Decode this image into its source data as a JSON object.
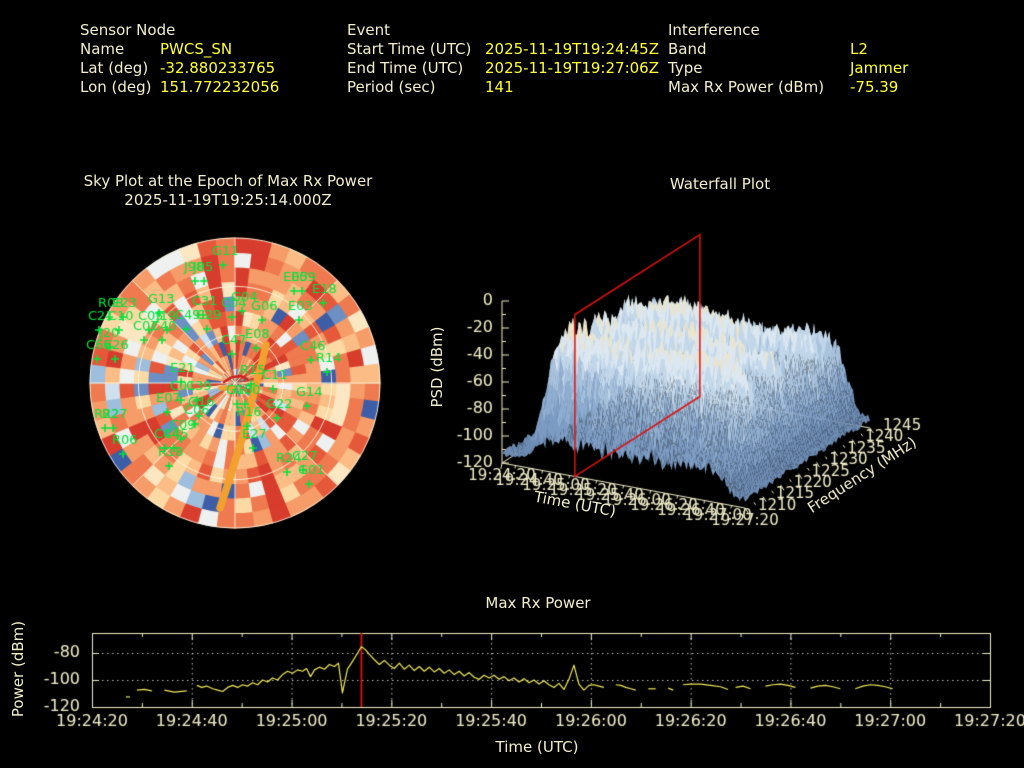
{
  "header": {
    "sensor": {
      "title": "Sensor Node",
      "rows": [
        {
          "label": "Name",
          "value": "PWCS_SN"
        },
        {
          "label": "Lat (deg)",
          "value": "-32.880233765"
        },
        {
          "label": "Lon (deg)",
          "value": "151.772232056"
        }
      ]
    },
    "event": {
      "title": "Event",
      "rows": [
        {
          "label": "Start Time (UTC)",
          "value": "2025-11-19T19:24:45Z"
        },
        {
          "label": "End Time (UTC)",
          "value": "2025-11-19T19:27:06Z"
        },
        {
          "label": "Period (sec)",
          "value": "141"
        }
      ]
    },
    "interference": {
      "title": "Interference",
      "rows": [
        {
          "label": "Band",
          "value": "L2"
        },
        {
          "label": "Type",
          "value": "Jammer"
        },
        {
          "label": "Max Rx Power (dBm)",
          "value": "-75.39"
        }
      ]
    }
  },
  "colors": {
    "background": "#000000",
    "text": "#f2eecb",
    "value_text": "#ffff33",
    "sat_green": "#00e43c",
    "track_orange": "#f2a12e",
    "marker_red": "#dd1111",
    "series_yellow": "#f0ea5e",
    "grid_white": "rgba(255,252,230,0.85)",
    "heat_palette": [
      "#3d5ea6",
      "#6d8fc3",
      "#9ebede",
      "#cfe0ee",
      "#eef1ef",
      "#fbe7c2",
      "#fdd9a4",
      "#fbbd85",
      "#f69c68",
      "#ef7a4f",
      "#e5593a",
      "#d73c2c"
    ],
    "surface_palette": [
      "#6f8db4",
      "#7e9dc4",
      "#91afd2",
      "#a9c3de",
      "#c2d7ea",
      "#dce8f2",
      "#e8e4d0",
      "#f2e6c4"
    ]
  },
  "chart_data": [
    {
      "id": "sky_plot",
      "type": "heatmap",
      "projection": "polar",
      "title": "Sky Plot at the Epoch of Max Rx Power",
      "subtitle": "2025-11-19T19:25:14.000Z",
      "grid": {
        "elevation_rings": 3,
        "azimuth_spokes": 8
      },
      "satellites": [
        {
          "id": "G11",
          "x": 212,
          "y": 245
        },
        {
          "id": "J05",
          "x": 193,
          "y": 261
        },
        {
          "id": "J98",
          "x": 184,
          "y": 261
        },
        {
          "id": "E05",
          "x": 283,
          "y": 271
        },
        {
          "id": "E09",
          "x": 291,
          "y": 271
        },
        {
          "id": "E18",
          "x": 312,
          "y": 283
        },
        {
          "id": "G04",
          "x": 231,
          "y": 291
        },
        {
          "id": "C04",
          "x": 221,
          "y": 297
        },
        {
          "id": "G06",
          "x": 251,
          "y": 300
        },
        {
          "id": "E03",
          "x": 288,
          "y": 300
        },
        {
          "id": "G13",
          "x": 148,
          "y": 293
        },
        {
          "id": "R08",
          "x": 98,
          "y": 297
        },
        {
          "id": "E23",
          "x": 112,
          "y": 297
        },
        {
          "id": "C31",
          "x": 192,
          "y": 295
        },
        {
          "id": "C21",
          "x": 88,
          "y": 310
        },
        {
          "id": "C10",
          "x": 108,
          "y": 310
        },
        {
          "id": "C05",
          "x": 138,
          "y": 310
        },
        {
          "id": "J19",
          "x": 156,
          "y": 310
        },
        {
          "id": "C49",
          "x": 175,
          "y": 309
        },
        {
          "id": "C29",
          "x": 196,
          "y": 309
        },
        {
          "id": "C07",
          "x": 133,
          "y": 320
        },
        {
          "id": "C40",
          "x": 151,
          "y": 320
        },
        {
          "id": "J20",
          "x": 99,
          "y": 327
        },
        {
          "id": "C66",
          "x": 86,
          "y": 339
        },
        {
          "id": "E26",
          "x": 104,
          "y": 339
        },
        {
          "id": "E08",
          "x": 245,
          "y": 328
        },
        {
          "id": "C47",
          "x": 221,
          "y": 334
        },
        {
          "id": "C46",
          "x": 300,
          "y": 340
        },
        {
          "id": "R14",
          "x": 316,
          "y": 352
        },
        {
          "id": "E21",
          "x": 170,
          "y": 362
        },
        {
          "id": "R15",
          "x": 240,
          "y": 364
        },
        {
          "id": "C11",
          "x": 262,
          "y": 369
        },
        {
          "id": "C01",
          "x": 170,
          "y": 380
        },
        {
          "id": "C39",
          "x": 186,
          "y": 380
        },
        {
          "id": "G10",
          "x": 226,
          "y": 384
        },
        {
          "id": "G30",
          "x": 234,
          "y": 384
        },
        {
          "id": "E07",
          "x": 156,
          "y": 392
        },
        {
          "id": "G16",
          "x": 188,
          "y": 396
        },
        {
          "id": "C06",
          "x": 184,
          "y": 404
        },
        {
          "id": "G22",
          "x": 266,
          "y": 398
        },
        {
          "id": "R16",
          "x": 236,
          "y": 406
        },
        {
          "id": "G14",
          "x": 296,
          "y": 386
        },
        {
          "id": "R27",
          "x": 102,
          "y": 408
        },
        {
          "id": "R22",
          "x": 94,
          "y": 408
        },
        {
          "id": "C09",
          "x": 170,
          "y": 419
        },
        {
          "id": "C44",
          "x": 154,
          "y": 428
        },
        {
          "id": "C45",
          "x": 163,
          "y": 428
        },
        {
          "id": "R06",
          "x": 112,
          "y": 434
        },
        {
          "id": "R18",
          "x": 158,
          "y": 446
        },
        {
          "id": "E27",
          "x": 242,
          "y": 428
        },
        {
          "id": "R24",
          "x": 276,
          "y": 452
        },
        {
          "id": "C27",
          "x": 292,
          "y": 450
        },
        {
          "id": "G01",
          "x": 298,
          "y": 464
        }
      ],
      "track": [
        [
          266,
          345
        ],
        [
          262,
          362
        ],
        [
          257,
          381
        ],
        [
          252,
          400
        ],
        [
          247,
          420
        ],
        [
          241,
          442
        ],
        [
          233,
          468
        ],
        [
          226,
          490
        ],
        [
          220,
          508
        ]
      ],
      "track_dash": [
        [
          221,
          388
        ],
        [
          233,
          388
        ]
      ],
      "epoch_marker": [
        [
          224,
          382
        ],
        [
          232,
          377
        ],
        [
          241,
          376
        ],
        [
          247,
          379
        ]
      ]
    },
    {
      "id": "waterfall",
      "type": "surface",
      "title": "Waterfall Plot",
      "zlabel": "PSD (dBm)",
      "zticks": [
        0,
        -20,
        -40,
        -60,
        -80,
        -100,
        -120
      ],
      "zlim": [
        -120,
        0
      ],
      "xlabel": "Time (UTC)",
      "xticks": [
        "19:24:20",
        "19:24:40",
        "19:25:00",
        "19:25:20",
        "19:25:40",
        "19:26:00",
        "19:26:20",
        "19:26:40",
        "19:27:00",
        "19:27:20"
      ],
      "ylabel": "Frequency (MHz)",
      "yticks": [
        1210,
        1215,
        1220,
        1225,
        1230,
        1235,
        1240,
        1245
      ],
      "ylim": [
        1210,
        1245
      ],
      "slice_marker_time": "19:25:14"
    },
    {
      "id": "max_rx_power",
      "type": "line",
      "title": "Max Rx Power",
      "xlabel": "Time (UTC)",
      "ylabel": "Power (dBm)",
      "xticks": [
        "19:24:20",
        "19:24:40",
        "19:25:00",
        "19:25:20",
        "19:25:40",
        "19:26:00",
        "19:26:20",
        "19:26:40",
        "19:27:00",
        "19:27:20"
      ],
      "yticks": [
        -80,
        -100,
        -120
      ],
      "ylim": [
        -120,
        -65.2
      ],
      "x_range_seconds": 180,
      "marker": {
        "time": "19:25:14",
        "t": 54,
        "color": "#dd1111"
      },
      "peak": {
        "t": 54,
        "value": -75.39
      },
      "segments": [
        [
          [
            6.8,
            -112.5
          ],
          [
            7.6,
            -112.5
          ]
        ],
        [
          [
            9,
            -107.5
          ],
          [
            10.5,
            -107
          ],
          [
            12,
            -108
          ]
        ],
        [
          [
            14.5,
            -107.5
          ],
          [
            16.5,
            -109
          ],
          [
            19,
            -108
          ]
        ],
        [
          [
            21,
            -104
          ],
          [
            22,
            -105.5
          ],
          [
            23,
            -104.5
          ],
          [
            24.2,
            -106.5
          ],
          [
            25.2,
            -107.5
          ],
          [
            26.2,
            -108.5
          ],
          [
            27.2,
            -105.5
          ],
          [
            28.2,
            -104
          ],
          [
            29.2,
            -105.5
          ],
          [
            30.2,
            -103.5
          ],
          [
            31.2,
            -104.5
          ],
          [
            32.2,
            -102
          ],
          [
            33.2,
            -103.5
          ],
          [
            34.2,
            -100
          ],
          [
            35.2,
            -101.5
          ],
          [
            36.2,
            -98.5
          ],
          [
            37.2,
            -100
          ],
          [
            38.2,
            -96
          ],
          [
            39.2,
            -93.5
          ],
          [
            40.2,
            -95
          ],
          [
            41.2,
            -92.5
          ],
          [
            42.2,
            -93.5
          ],
          [
            43,
            -91.5
          ],
          [
            43.8,
            -97.5
          ],
          [
            44.6,
            -92.5
          ],
          [
            45.6,
            -90.5
          ],
          [
            46.6,
            -92
          ],
          [
            47.6,
            -88.5
          ],
          [
            48.6,
            -90
          ],
          [
            49.4,
            -87.5
          ],
          [
            50.2,
            -109.5
          ],
          [
            51.2,
            -92
          ],
          [
            52,
            -87.5
          ],
          [
            53,
            -81.5
          ],
          [
            54,
            -75.4
          ],
          [
            54.8,
            -77.5
          ],
          [
            55.6,
            -81
          ],
          [
            56.6,
            -85
          ],
          [
            57.6,
            -88.5
          ],
          [
            58.6,
            -85.5
          ],
          [
            59.6,
            -89
          ],
          [
            60.6,
            -91.5
          ],
          [
            61.6,
            -87.5
          ],
          [
            62.6,
            -92
          ],
          [
            63.6,
            -89
          ],
          [
            64.6,
            -93
          ],
          [
            65.6,
            -90
          ],
          [
            66.6,
            -93.5
          ],
          [
            67.6,
            -90.5
          ],
          [
            68.6,
            -94
          ],
          [
            69.6,
            -91.5
          ],
          [
            70.6,
            -95
          ],
          [
            71.6,
            -92.5
          ],
          [
            72.6,
            -96
          ],
          [
            73.6,
            -93.5
          ],
          [
            74.6,
            -97
          ],
          [
            75.6,
            -94.5
          ],
          [
            76.6,
            -98
          ],
          [
            77.6,
            -99.5
          ],
          [
            78.6,
            -96.5
          ],
          [
            79.6,
            -98.5
          ],
          [
            80.6,
            -96.5
          ],
          [
            81.6,
            -99.5
          ],
          [
            82.6,
            -97.5
          ],
          [
            83.6,
            -100.5
          ],
          [
            84.6,
            -98.5
          ],
          [
            85.6,
            -101.5
          ],
          [
            86.6,
            -99
          ],
          [
            87.6,
            -102
          ],
          [
            88.6,
            -100
          ],
          [
            89.6,
            -103
          ],
          [
            90.6,
            -100.5
          ],
          [
            91.6,
            -103.5
          ],
          [
            92.6,
            -105.5
          ],
          [
            93.6,
            -102.5
          ],
          [
            94.6,
            -107
          ],
          [
            95.6,
            -99.5
          ],
          [
            96.6,
            -89
          ],
          [
            97.6,
            -103
          ],
          [
            98.6,
            -107.5
          ],
          [
            99.6,
            -104
          ],
          [
            100.6,
            -103.5
          ],
          [
            101.6,
            -104.5
          ],
          [
            102.6,
            -105.5
          ]
        ],
        [
          [
            105,
            -103.5
          ],
          [
            106,
            -104
          ],
          [
            107,
            -105.5
          ],
          [
            108,
            -106.5
          ],
          [
            109,
            -107.5
          ]
        ],
        [
          [
            111.5,
            -106.5
          ],
          [
            113,
            -106.5
          ]
        ],
        [
          [
            115.5,
            -106
          ],
          [
            116.5,
            -107.5
          ]
        ],
        [
          [
            118.5,
            -103.5
          ],
          [
            120,
            -103
          ],
          [
            122,
            -103
          ],
          [
            124,
            -104
          ],
          [
            126,
            -105
          ],
          [
            127.5,
            -107
          ]
        ],
        [
          [
            129,
            -105.5
          ],
          [
            130.5,
            -104.5
          ],
          [
            132,
            -106.5
          ]
        ],
        [
          [
            135,
            -104.5
          ],
          [
            136.5,
            -103.5
          ],
          [
            138,
            -103
          ],
          [
            139.5,
            -104
          ],
          [
            141,
            -105.5
          ]
        ],
        [
          [
            144,
            -106
          ],
          [
            145.5,
            -104.5
          ],
          [
            147,
            -104
          ],
          [
            148.5,
            -105
          ],
          [
            150,
            -106.5
          ]
        ],
        [
          [
            153,
            -106.5
          ],
          [
            154.5,
            -104.5
          ],
          [
            156,
            -103.5
          ],
          [
            157.5,
            -104
          ],
          [
            159,
            -105
          ],
          [
            160.5,
            -106.5
          ]
        ]
      ]
    }
  ]
}
